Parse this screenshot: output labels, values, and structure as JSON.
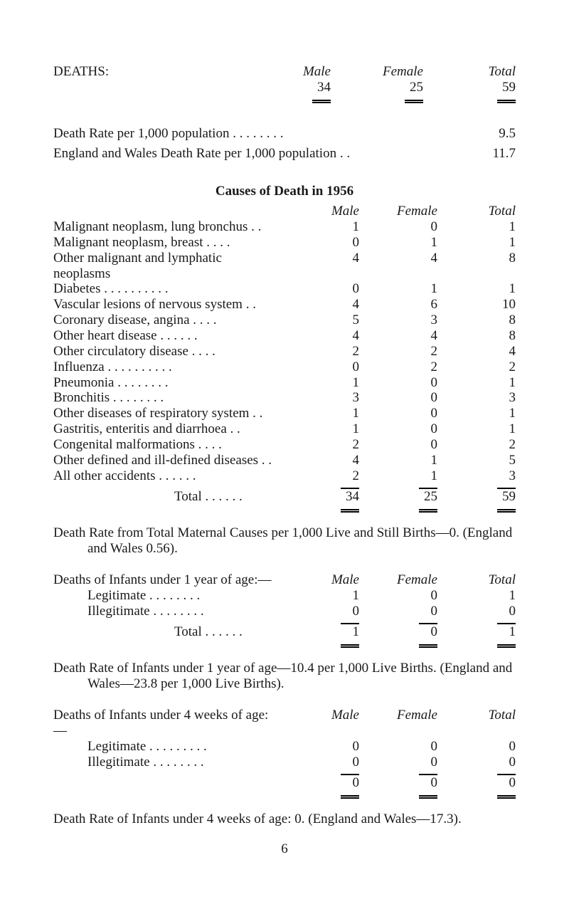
{
  "deaths_header": {
    "label": "DEATHS:",
    "male_h": "Male",
    "female_h": "Female",
    "total_h": "Total",
    "male": "34",
    "female": "25",
    "total": "59"
  },
  "rates": {
    "pop": "Death Rate per 1,000 population   . .      . .      . .     . .",
    "pop_val": "9.5",
    "ew": "England and Wales Death Rate per 1,000 population   . .",
    "ew_val": "11.7"
  },
  "causes": {
    "title": "Causes of Death in 1956",
    "male_h": "Male",
    "female_h": "Female",
    "total_h": "Total",
    "rows": [
      {
        "label": "Malignant neoplasm, lung bronchus   . .",
        "m": "1",
        "f": "0",
        "t": "1"
      },
      {
        "label": "Malignant neoplasm, breast       . .     . .",
        "m": "0",
        "f": "1",
        "t": "1"
      },
      {
        "label": "Other malignant and lymphatic neoplasms",
        "m": "4",
        "f": "4",
        "t": "8"
      },
      {
        "label": "Diabetes   . .        . .        . .        . .       . .",
        "m": "0",
        "f": "1",
        "t": "1"
      },
      {
        "label": "Vascular lesions of nervous system     . .",
        "m": "4",
        "f": "6",
        "t": "10"
      },
      {
        "label": "Coronary disease, angina        . .       . .",
        "m": "5",
        "f": "3",
        "t": "8"
      },
      {
        "label": "Other heart disease         . .        . .       . .",
        "m": "4",
        "f": "4",
        "t": "8"
      },
      {
        "label": "Other circulatory disease        . .       . .",
        "m": "2",
        "f": "2",
        "t": "4"
      },
      {
        "label": "Influenza  . .        . .        . .        . .       . .",
        "m": "0",
        "f": "2",
        "t": "2"
      },
      {
        "label": "Pneumonia       . .        . .        . .       . .",
        "m": "1",
        "f": "0",
        "t": "1"
      },
      {
        "label": "Bronchitis        . .        . .        . .       . .",
        "m": "3",
        "f": "0",
        "t": "3"
      },
      {
        "label": "Other diseases of respiratory system  . .",
        "m": "1",
        "f": "0",
        "t": "1"
      },
      {
        "label": "Gastritis, enteritis and diarrhoea       . .",
        "m": "1",
        "f": "0",
        "t": "1"
      },
      {
        "label": "Congenital malformations       . .       . .",
        "m": "2",
        "f": "0",
        "t": "2"
      },
      {
        "label": "Other defined and ill-defined diseases . .",
        "m": "4",
        "f": "1",
        "t": "5"
      },
      {
        "label": "All other accidents        . .        . .       . .",
        "m": "2",
        "f": "1",
        "t": "3"
      }
    ],
    "total_label": "Total   . .        . .       . .",
    "total": {
      "m": "34",
      "f": "25",
      "t": "59"
    }
  },
  "maternal": {
    "text": "Death Rate from Total Maternal Causes per 1,000 Live and Still Births—0.   (England and Wales 0.56)."
  },
  "infants1yr": {
    "heading": "Deaths of Infants under 1 year of age:—",
    "male_h": "Male",
    "female_h": "Female",
    "total_h": "Total",
    "rows": [
      {
        "label": "Legitimate   . .       . .       . .       . .",
        "m": "1",
        "f": "0",
        "t": "1"
      },
      {
        "label": "Illegitimate . .       . .       . .       . .",
        "m": "0",
        "f": "0",
        "t": "0"
      }
    ],
    "total_label": "Total   . .       . .       . .",
    "total": {
      "m": "1",
      "f": "0",
      "t": "1"
    }
  },
  "rate1yr": {
    "text": "Death Rate of Infants under 1 year of age—10.4 per 1,000 Live Births.   (England and Wales—23.8 per 1,000 Live Births)."
  },
  "infants4wk": {
    "heading": "Deaths of Infants under 4 weeks of age:—",
    "male_h": "Male",
    "female_h": "Female",
    "total_h": "Total",
    "rows": [
      {
        "label": "Legitimate   . .       . .      . . .       . .",
        "m": "0",
        "f": "0",
        "t": "0"
      },
      {
        "label": "Illegitimate . .       . .       . .       . .",
        "m": "0",
        "f": "0",
        "t": "0"
      }
    ],
    "total": {
      "m": "0",
      "f": "0",
      "t": "0"
    }
  },
  "rate4wk": {
    "text": "Death Rate of Infants under 4 weeks of age: 0. (England and Wales—17.3)."
  },
  "pagenum": "6"
}
